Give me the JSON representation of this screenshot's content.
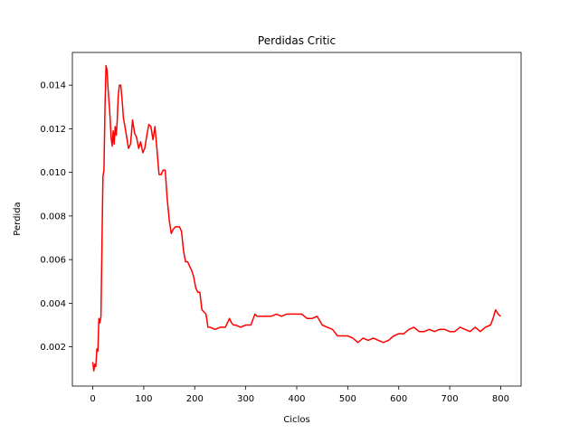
{
  "chart_data": {
    "type": "line",
    "title": "Perdidas Critic",
    "xlabel": "Ciclos",
    "ylabel": "Perdida",
    "xlim": [
      -40,
      840
    ],
    "ylim": [
      0.0002,
      0.0155
    ],
    "xticks": [
      0,
      100,
      200,
      300,
      400,
      500,
      600,
      700,
      800
    ],
    "yticks": [
      0.002,
      0.004,
      0.006,
      0.008,
      0.01,
      0.012,
      0.014
    ],
    "ytick_labels": [
      "0.002",
      "0.004",
      "0.006",
      "0.008",
      "0.010",
      "0.012",
      "0.014"
    ],
    "grid": false,
    "series": [
      {
        "color": "#ff0000",
        "x": [
          0,
          2,
          4,
          6,
          8,
          10,
          12,
          14,
          16,
          18,
          20,
          22,
          24,
          26,
          28,
          30,
          32,
          34,
          36,
          38,
          40,
          42,
          44,
          46,
          48,
          50,
          52,
          55,
          58,
          60,
          63,
          66,
          70,
          74,
          78,
          82,
          86,
          90,
          94,
          98,
          102,
          106,
          110,
          114,
          118,
          122,
          126,
          130,
          134,
          138,
          142,
          146,
          150,
          154,
          158,
          162,
          166,
          170,
          174,
          178,
          182,
          186,
          190,
          194,
          198,
          202,
          206,
          210,
          214,
          218,
          222,
          226,
          230,
          240,
          250,
          260,
          268,
          272,
          276,
          280,
          290,
          300,
          310,
          318,
          322,
          330,
          340,
          350,
          360,
          370,
          380,
          390,
          400,
          410,
          420,
          430,
          440,
          450,
          460,
          470,
          480,
          490,
          500,
          510,
          520,
          530,
          540,
          550,
          560,
          570,
          580,
          590,
          600,
          610,
          620,
          630,
          640,
          650,
          660,
          670,
          680,
          690,
          700,
          710,
          720,
          730,
          740,
          750,
          760,
          770,
          780,
          785,
          790,
          795,
          800
        ],
        "y": [
          0.0013,
          0.0009,
          0.0012,
          0.0011,
          0.0019,
          0.0018,
          0.0033,
          0.0031,
          0.0034,
          0.0067,
          0.0098,
          0.0101,
          0.0131,
          0.0149,
          0.0147,
          0.0138,
          0.0132,
          0.0125,
          0.0116,
          0.0112,
          0.0119,
          0.0113,
          0.0121,
          0.0117,
          0.0124,
          0.0135,
          0.014,
          0.014,
          0.0132,
          0.0125,
          0.0121,
          0.0117,
          0.0111,
          0.0113,
          0.0124,
          0.0118,
          0.0116,
          0.0111,
          0.0114,
          0.0109,
          0.0111,
          0.0117,
          0.0122,
          0.0121,
          0.0115,
          0.0121,
          0.011,
          0.0099,
          0.0099,
          0.0101,
          0.0101,
          0.0088,
          0.0078,
          0.0072,
          0.0074,
          0.0075,
          0.0075,
          0.0075,
          0.0073,
          0.0064,
          0.0059,
          0.0059,
          0.0057,
          0.0055,
          0.0052,
          0.0047,
          0.0045,
          0.0045,
          0.0037,
          0.0036,
          0.0035,
          0.0029,
          0.0029,
          0.0028,
          0.0029,
          0.0029,
          0.0033,
          0.0031,
          0.003,
          0.003,
          0.0029,
          0.003,
          0.003,
          0.0035,
          0.0034,
          0.0034,
          0.0034,
          0.0034,
          0.0035,
          0.0034,
          0.0035,
          0.0035,
          0.0035,
          0.0035,
          0.0033,
          0.0033,
          0.0034,
          0.003,
          0.0029,
          0.0028,
          0.0025,
          0.0025,
          0.0025,
          0.0024,
          0.0022,
          0.0024,
          0.0023,
          0.0024,
          0.0023,
          0.0022,
          0.0023,
          0.0025,
          0.0026,
          0.0026,
          0.0028,
          0.0029,
          0.0027,
          0.0027,
          0.0028,
          0.0027,
          0.0028,
          0.0028,
          0.0027,
          0.0027,
          0.0029,
          0.0028,
          0.0027,
          0.0029,
          0.0027,
          0.0029,
          0.003,
          0.0033,
          0.0037,
          0.0035,
          0.0034
        ]
      }
    ]
  }
}
